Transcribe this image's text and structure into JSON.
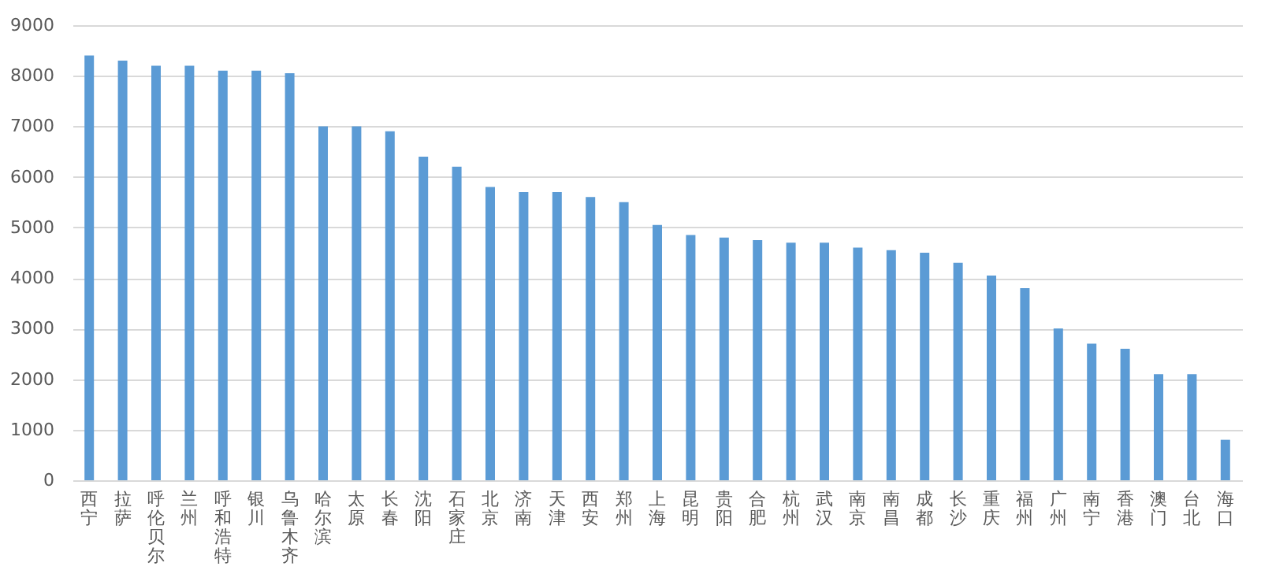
{
  "chart_data": {
    "type": "bar",
    "categories": [
      "西宁",
      "拉萨",
      "呼伦贝尔",
      "兰州",
      "呼和浩特",
      "银川",
      "乌鲁木齐",
      "哈尔滨",
      "太原",
      "长春",
      "沈阳",
      "石家庄",
      "北京",
      "济南",
      "天津",
      "西安",
      "郑州",
      "上海",
      "昆明",
      "贵阳",
      "合肥",
      "杭州",
      "武汉",
      "南京",
      "南昌",
      "成都",
      "长沙",
      "重庆",
      "福州",
      "广州",
      "南宁",
      "香港",
      "澳门",
      "台北",
      "海口"
    ],
    "values": [
      8400,
      8300,
      8200,
      8200,
      8100,
      8100,
      8050,
      7000,
      7000,
      6900,
      6400,
      6200,
      5800,
      5700,
      5700,
      5600,
      5500,
      5050,
      4850,
      4800,
      4750,
      4700,
      4700,
      4600,
      4550,
      4500,
      4300,
      4050,
      3800,
      3000,
      2700,
      2600,
      2100,
      2100,
      800
    ],
    "color": "#5b9bd5",
    "ylim": [
      0,
      9000
    ],
    "yticks": [
      0,
      1000,
      2000,
      3000,
      4000,
      5000,
      6000,
      7000,
      8000,
      9000
    ],
    "grid": "y"
  }
}
